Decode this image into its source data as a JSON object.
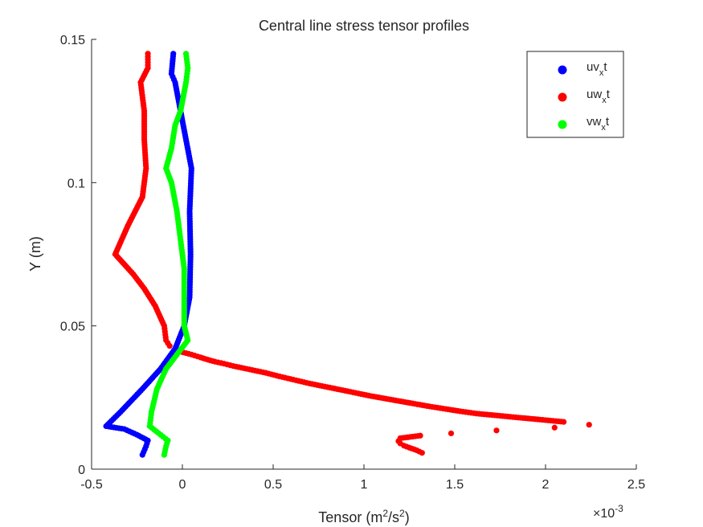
{
  "chart_data": {
    "type": "scatter",
    "title": "Central line stress tensor profiles",
    "xlabel": "Tensor (m$^2$/s$^2$)",
    "ylabel": "Y (m)",
    "x_multiplier_label": "×10$^{-3}$",
    "xlim": [
      -0.5,
      2.5
    ],
    "ylim": [
      0,
      0.15
    ],
    "x_ticks": [
      -0.5,
      0,
      0.5,
      1,
      1.5,
      2,
      2.5
    ],
    "x_tick_labels": [
      "-0.5",
      "0",
      "0.5",
      "1",
      "1.5",
      "2",
      "2.5"
    ],
    "y_ticks": [
      0,
      0.05,
      0.1,
      0.15
    ],
    "y_tick_labels": [
      "0",
      "0.05",
      "0.1",
      "0.15"
    ],
    "grid": false,
    "legend_position": "top-right",
    "series": [
      {
        "name": "uv$_x$t",
        "color": "#0000ff",
        "keypoints": [
          [
            -0.22,
            0.005
          ],
          [
            -0.2,
            0.008
          ],
          [
            -0.19,
            0.01
          ],
          [
            -0.25,
            0.012
          ],
          [
            -0.32,
            0.014
          ],
          [
            -0.42,
            0.015
          ],
          [
            -0.34,
            0.02
          ],
          [
            -0.22,
            0.028
          ],
          [
            -0.12,
            0.035
          ],
          [
            -0.04,
            0.042
          ],
          [
            0.01,
            0.05
          ],
          [
            0.04,
            0.06
          ],
          [
            0.045,
            0.075
          ],
          [
            0.04,
            0.09
          ],
          [
            0.05,
            0.105
          ],
          [
            0.02,
            0.115
          ],
          [
            -0.01,
            0.125
          ],
          [
            -0.04,
            0.135
          ],
          [
            -0.06,
            0.138
          ],
          [
            -0.05,
            0.145
          ]
        ]
      },
      {
        "name": "uw$_x$t",
        "color": "#ff0000",
        "keypoints": [
          [
            -0.01,
            0.041
          ],
          [
            0.05,
            0.04
          ],
          [
            0.1,
            0.039
          ],
          [
            0.14,
            0.0382
          ],
          [
            0.18,
            0.0375
          ],
          [
            0.23,
            0.0368
          ],
          [
            0.28,
            0.036
          ],
          [
            0.34,
            0.0352
          ],
          [
            0.4,
            0.0344
          ],
          [
            0.46,
            0.0336
          ],
          [
            0.52,
            0.0326
          ],
          [
            0.58,
            0.0317
          ],
          [
            0.64,
            0.0308
          ],
          [
            0.7,
            0.0299
          ],
          [
            0.77,
            0.029
          ],
          [
            0.84,
            0.0281
          ],
          [
            0.91,
            0.0272
          ],
          [
            0.97,
            0.0264
          ],
          [
            1.04,
            0.0255
          ],
          [
            1.12,
            0.0246
          ],
          [
            1.2,
            0.0237
          ],
          [
            1.28,
            0.0228
          ],
          [
            1.36,
            0.0219
          ],
          [
            1.45,
            0.021
          ],
          [
            1.53,
            0.0202
          ],
          [
            1.62,
            0.0194
          ],
          [
            1.72,
            0.0188
          ],
          [
            1.85,
            0.018
          ],
          [
            1.97,
            0.0173
          ],
          [
            2.1,
            0.0165
          ],
          [
            2.24,
            0.0155
          ],
          [
            2.05,
            0.0145
          ],
          [
            1.73,
            0.0135
          ],
          [
            1.48,
            0.0125
          ],
          [
            1.31,
            0.0117
          ],
          [
            1.2,
            0.0108
          ],
          [
            1.19,
            0.0098
          ],
          [
            1.2,
            0.009
          ],
          [
            1.22,
            0.0082
          ],
          [
            1.25,
            0.0075
          ],
          [
            1.29,
            0.0066
          ],
          [
            1.32,
            0.0057
          ],
          [
            -0.07,
            0.043
          ],
          [
            -0.09,
            0.045
          ],
          [
            -0.1,
            0.05
          ],
          [
            -0.15,
            0.057
          ],
          [
            -0.21,
            0.063
          ],
          [
            -0.27,
            0.068
          ],
          [
            -0.37,
            0.075
          ],
          [
            -0.3,
            0.085
          ],
          [
            -0.22,
            0.095
          ],
          [
            -0.2,
            0.105
          ],
          [
            -0.21,
            0.115
          ],
          [
            -0.21,
            0.125
          ],
          [
            -0.23,
            0.135
          ],
          [
            -0.19,
            0.14
          ],
          [
            -0.19,
            0.145
          ]
        ]
      },
      {
        "name": "vw$_x$t",
        "color": "#00ff00",
        "keypoints": [
          [
            -0.1,
            0.005
          ],
          [
            -0.09,
            0.008
          ],
          [
            -0.08,
            0.01
          ],
          [
            -0.12,
            0.012
          ],
          [
            -0.18,
            0.015
          ],
          [
            -0.17,
            0.02
          ],
          [
            -0.14,
            0.028
          ],
          [
            -0.09,
            0.035
          ],
          [
            -0.03,
            0.04
          ],
          [
            0.03,
            0.045
          ],
          [
            0.01,
            0.05
          ],
          [
            0.01,
            0.06
          ],
          [
            0.01,
            0.07
          ],
          [
            -0.01,
            0.08
          ],
          [
            -0.03,
            0.09
          ],
          [
            -0.06,
            0.1
          ],
          [
            -0.09,
            0.105
          ],
          [
            -0.06,
            0.112
          ],
          [
            -0.04,
            0.12
          ],
          [
            -0.01,
            0.125
          ],
          [
            0.02,
            0.135
          ],
          [
            0.03,
            0.14
          ],
          [
            0.02,
            0.145
          ]
        ]
      }
    ]
  }
}
